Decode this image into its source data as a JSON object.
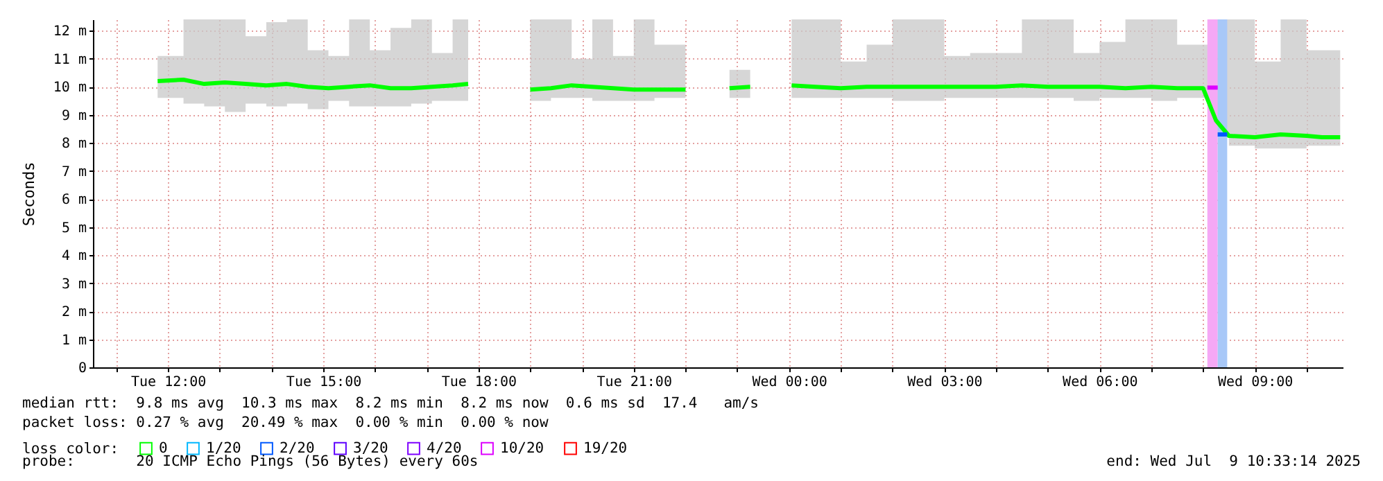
{
  "chart_data": {
    "type": "line",
    "ylabel": "Seconds",
    "xlim": [
      "2025-07-08T10:33",
      "2025-07-09T10:42"
    ],
    "ylim": [
      0,
      12.4
    ],
    "xticks": [
      {
        "value": "2025-07-08T11:00",
        "label": null
      },
      {
        "value": "2025-07-08T12:00",
        "label": "Tue 12:00"
      },
      {
        "value": "2025-07-08T13:00",
        "label": null
      },
      {
        "value": "2025-07-08T14:00",
        "label": null
      },
      {
        "value": "2025-07-08T15:00",
        "label": "Tue 15:00"
      },
      {
        "value": "2025-07-08T16:00",
        "label": null
      },
      {
        "value": "2025-07-08T17:00",
        "label": null
      },
      {
        "value": "2025-07-08T18:00",
        "label": "Tue 18:00"
      },
      {
        "value": "2025-07-08T19:00",
        "label": null
      },
      {
        "value": "2025-07-08T20:00",
        "label": null
      },
      {
        "value": "2025-07-08T21:00",
        "label": "Tue 21:00"
      },
      {
        "value": "2025-07-08T22:00",
        "label": null
      },
      {
        "value": "2025-07-08T23:00",
        "label": null
      },
      {
        "value": "2025-07-09T00:00",
        "label": "Wed 00:00"
      },
      {
        "value": "2025-07-09T01:00",
        "label": null
      },
      {
        "value": "2025-07-09T02:00",
        "label": null
      },
      {
        "value": "2025-07-09T03:00",
        "label": "Wed 03:00"
      },
      {
        "value": "2025-07-09T04:00",
        "label": null
      },
      {
        "value": "2025-07-09T05:00",
        "label": null
      },
      {
        "value": "2025-07-09T06:00",
        "label": "Wed 06:00"
      },
      {
        "value": "2025-07-09T07:00",
        "label": null
      },
      {
        "value": "2025-07-09T08:00",
        "label": null
      },
      {
        "value": "2025-07-09T09:00",
        "label": "Wed 09:00"
      },
      {
        "value": "2025-07-09T10:00",
        "label": null
      }
    ],
    "yticks": [
      0,
      {
        "value": 1,
        "label": "1 m"
      },
      {
        "value": 2,
        "label": "2 m"
      },
      {
        "value": 3,
        "label": "3 m"
      },
      {
        "value": 4,
        "label": "4 m"
      },
      {
        "value": 5,
        "label": "5 m"
      },
      {
        "value": 6,
        "label": "6 m"
      },
      {
        "value": 7,
        "label": "7 m"
      },
      {
        "value": 8,
        "label": "8 m"
      },
      {
        "value": 9,
        "label": "9 m"
      },
      {
        "value": 10,
        "label": "10 m"
      },
      {
        "value": 11,
        "label": "11 m"
      },
      {
        "value": 12,
        "label": "12 m"
      }
    ],
    "grid": true,
    "legend": "bottom",
    "legend_title": "loss color:",
    "marker": "none",
    "series": [
      {
        "name": "0",
        "color": "#00ff00",
        "x": [
          "2025-07-08T11:48",
          "2025-07-08T12:18",
          "2025-07-08T12:42",
          "2025-07-08T13:06",
          "2025-07-08T13:30",
          "2025-07-08T13:54",
          "2025-07-08T14:18",
          "2025-07-08T14:42",
          "2025-07-08T15:06",
          "2025-07-08T15:30",
          "2025-07-08T15:54",
          "2025-07-08T16:18",
          "2025-07-08T16:42",
          "2025-07-08T17:06",
          "2025-07-08T17:30",
          "2025-07-08T17:48",
          "2025-07-08T18:24",
          "2025-07-08T19:00",
          "2025-07-08T19:24",
          "2025-07-08T19:48",
          "2025-07-08T20:12",
          "2025-07-08T20:36",
          "2025-07-08T21:00",
          "2025-07-08T21:24",
          "2025-07-08T22:00",
          "2025-07-08T22:24",
          "2025-07-08T22:51",
          "2025-07-08T23:15",
          "2025-07-08T23:36",
          "2025-07-09T00:03",
          "2025-07-09T00:30",
          "2025-07-09T01:00",
          "2025-07-09T01:30",
          "2025-07-09T02:00",
          "2025-07-09T02:30",
          "2025-07-09T03:00",
          "2025-07-09T03:30",
          "2025-07-09T04:00",
          "2025-07-09T04:30",
          "2025-07-09T05:00",
          "2025-07-09T05:30",
          "2025-07-09T06:00",
          "2025-07-09T06:30",
          "2025-07-09T07:00",
          "2025-07-09T07:30",
          "2025-07-09T08:00",
          "2025-07-09T08:15",
          "2025-07-09T08:30",
          "2025-07-09T09:00",
          "2025-07-09T09:30",
          "2025-07-09T10:00",
          "2025-07-09T10:18",
          "2025-07-09T10:39"
        ],
        "values": [
          10.2,
          10.25,
          10.1,
          10.15,
          10.1,
          10.05,
          10.1,
          10.0,
          9.95,
          10.0,
          10.05,
          9.95,
          9.95,
          10.0,
          10.05,
          10.1,
          null,
          9.9,
          9.95,
          10.05,
          10.0,
          9.95,
          9.9,
          9.9,
          9.9,
          null,
          9.95,
          10.0,
          null,
          10.05,
          10.0,
          9.95,
          10.0,
          10.0,
          10.0,
          10.0,
          10.0,
          10.0,
          10.05,
          10.0,
          10.0,
          10.0,
          9.95,
          10.0,
          9.95,
          9.95,
          8.8,
          8.25,
          8.2,
          8.3,
          8.25,
          8.2,
          8.2
        ],
        "lower": [
          9.6,
          9.4,
          9.3,
          9.1,
          9.4,
          9.3,
          9.4,
          9.2,
          9.5,
          9.3,
          9.3,
          9.3,
          9.4,
          9.5,
          9.5,
          9.5,
          null,
          9.5,
          9.6,
          9.6,
          9.5,
          9.5,
          9.5,
          9.6,
          9.6,
          null,
          9.6,
          9.6,
          null,
          9.6,
          9.6,
          9.6,
          9.6,
          9.5,
          9.5,
          9.6,
          9.6,
          9.6,
          9.6,
          9.6,
          9.5,
          9.6,
          9.6,
          9.5,
          9.6,
          9.6,
          8.2,
          7.9,
          7.8,
          7.8,
          7.9,
          7.9,
          7.9
        ],
        "upper": [
          11.1,
          12.4,
          12.4,
          12.4,
          11.8,
          12.3,
          12.4,
          11.3,
          11.1,
          12.4,
          11.3,
          12.1,
          12.4,
          11.2,
          12.4,
          12.4,
          null,
          12.4,
          12.4,
          11.0,
          12.4,
          11.1,
          12.4,
          11.5,
          11.0,
          null,
          10.6,
          12.4,
          null,
          12.4,
          12.4,
          10.9,
          11.5,
          12.4,
          12.4,
          11.1,
          11.2,
          11.2,
          12.4,
          12.4,
          11.2,
          11.6,
          12.4,
          12.4,
          11.5,
          11.5,
          12.4,
          12.4,
          10.9,
          12.4,
          11.3,
          11.3,
          9.8
        ]
      },
      {
        "name": "1/20",
        "color": "#00b8ff"
      },
      {
        "name": "2/20",
        "color": "#0059ff",
        "x": [
          "2025-07-09T08:17",
          "2025-07-09T08:28"
        ],
        "values": [
          8.3,
          8.3
        ]
      },
      {
        "name": "3/20",
        "color": "#5e00ff"
      },
      {
        "name": "4/20",
        "color": "#7e00ff"
      },
      {
        "name": "10/20",
        "color": "#dd00ff",
        "x": [
          "2025-07-09T08:05",
          "2025-07-09T08:17"
        ],
        "values": [
          9.97,
          9.97
        ]
      },
      {
        "name": "19/20",
        "color": "#ff0000"
      }
    ],
    "bands": [
      {
        "axis": "x",
        "from": "2025-07-09T08:05",
        "to": "2025-07-09T08:17",
        "color": "#f5a8f5"
      },
      {
        "axis": "x",
        "from": "2025-07-09T08:17",
        "to": "2025-07-09T08:28",
        "color": "#a8c8f8"
      }
    ],
    "annotations": [
      "median rtt:  9.8 ms avg  10.3 ms max  8.2 ms min  8.2 ms now  0.6 ms sd  17.4   am/s",
      "packet loss: 0.27 % avg  20.49 % max  0.00 % min  0.00 % now",
      "probe:       20 ICMP Echo Pings (56 Bytes) every 60s",
      "end: Wed Jul  9 10:33:14 2025"
    ]
  }
}
